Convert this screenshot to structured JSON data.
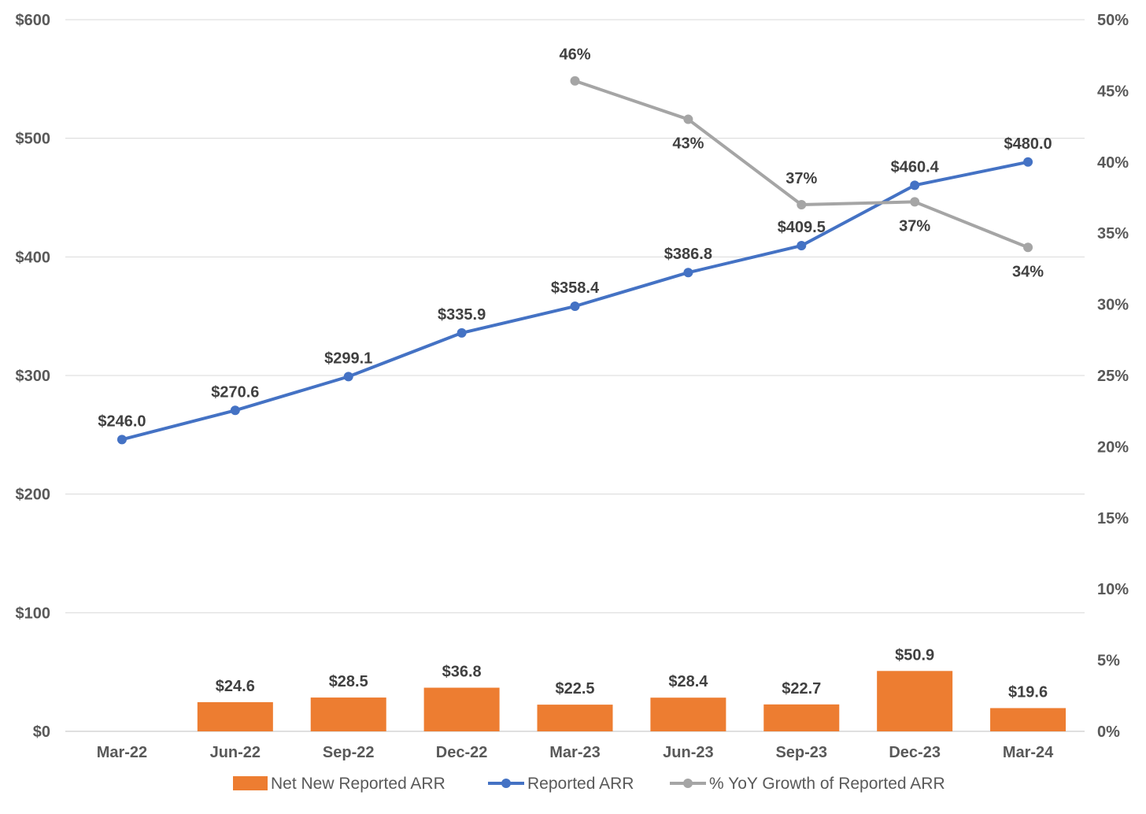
{
  "chart_data": {
    "type": "bar+line",
    "categories": [
      "Mar-22",
      "Jun-22",
      "Sep-22",
      "Dec-22",
      "Mar-23",
      "Jun-23",
      "Sep-23",
      "Dec-23",
      "Mar-24"
    ],
    "series": [
      {
        "name": "Net New Reported ARR",
        "type": "bar",
        "axis": "left",
        "color": "#ED7D31",
        "values": [
          null,
          24.6,
          28.5,
          36.8,
          22.5,
          28.4,
          22.7,
          50.9,
          19.6
        ],
        "labels": [
          "",
          "$24.6",
          "$28.5",
          "$36.8",
          "$22.5",
          "$28.4",
          "$22.7",
          "$50.9",
          "$19.6"
        ]
      },
      {
        "name": "Reported ARR",
        "type": "line",
        "axis": "left",
        "color": "#4472C4",
        "values": [
          246.0,
          270.6,
          299.1,
          335.9,
          358.4,
          386.8,
          409.5,
          460.4,
          480.0
        ],
        "labels": [
          "$246.0",
          "$270.6",
          "$299.1",
          "$335.9",
          "$358.4",
          "$386.8",
          "$409.5",
          "$460.4",
          "$480.0"
        ]
      },
      {
        "name": "% YoY Growth of Reported ARR",
        "type": "line",
        "axis": "right",
        "color": "#A5A5A5",
        "values": [
          null,
          null,
          null,
          null,
          45.7,
          43.0,
          37.0,
          37.2,
          34.0
        ],
        "labels": [
          "",
          "",
          "",
          "",
          "46%",
          "43%",
          "37%",
          "37%",
          "34%"
        ]
      }
    ],
    "y_left": {
      "ylim": [
        0,
        600
      ],
      "ticks": [
        0,
        100,
        200,
        300,
        400,
        500,
        600
      ],
      "tick_labels": [
        "$0",
        "$100",
        "$200",
        "$300",
        "$400",
        "$500",
        "$600"
      ]
    },
    "y_right": {
      "ylim": [
        0,
        50
      ],
      "ticks": [
        0,
        5,
        10,
        15,
        20,
        25,
        30,
        35,
        40,
        45,
        50
      ],
      "tick_labels": [
        "0%",
        "5%",
        "10%",
        "15%",
        "20%",
        "25%",
        "30%",
        "35%",
        "40%",
        "45%",
        "50%"
      ]
    },
    "grid": true,
    "legend": "bottom",
    "title": "",
    "xlabel": "",
    "ylabel": ""
  }
}
